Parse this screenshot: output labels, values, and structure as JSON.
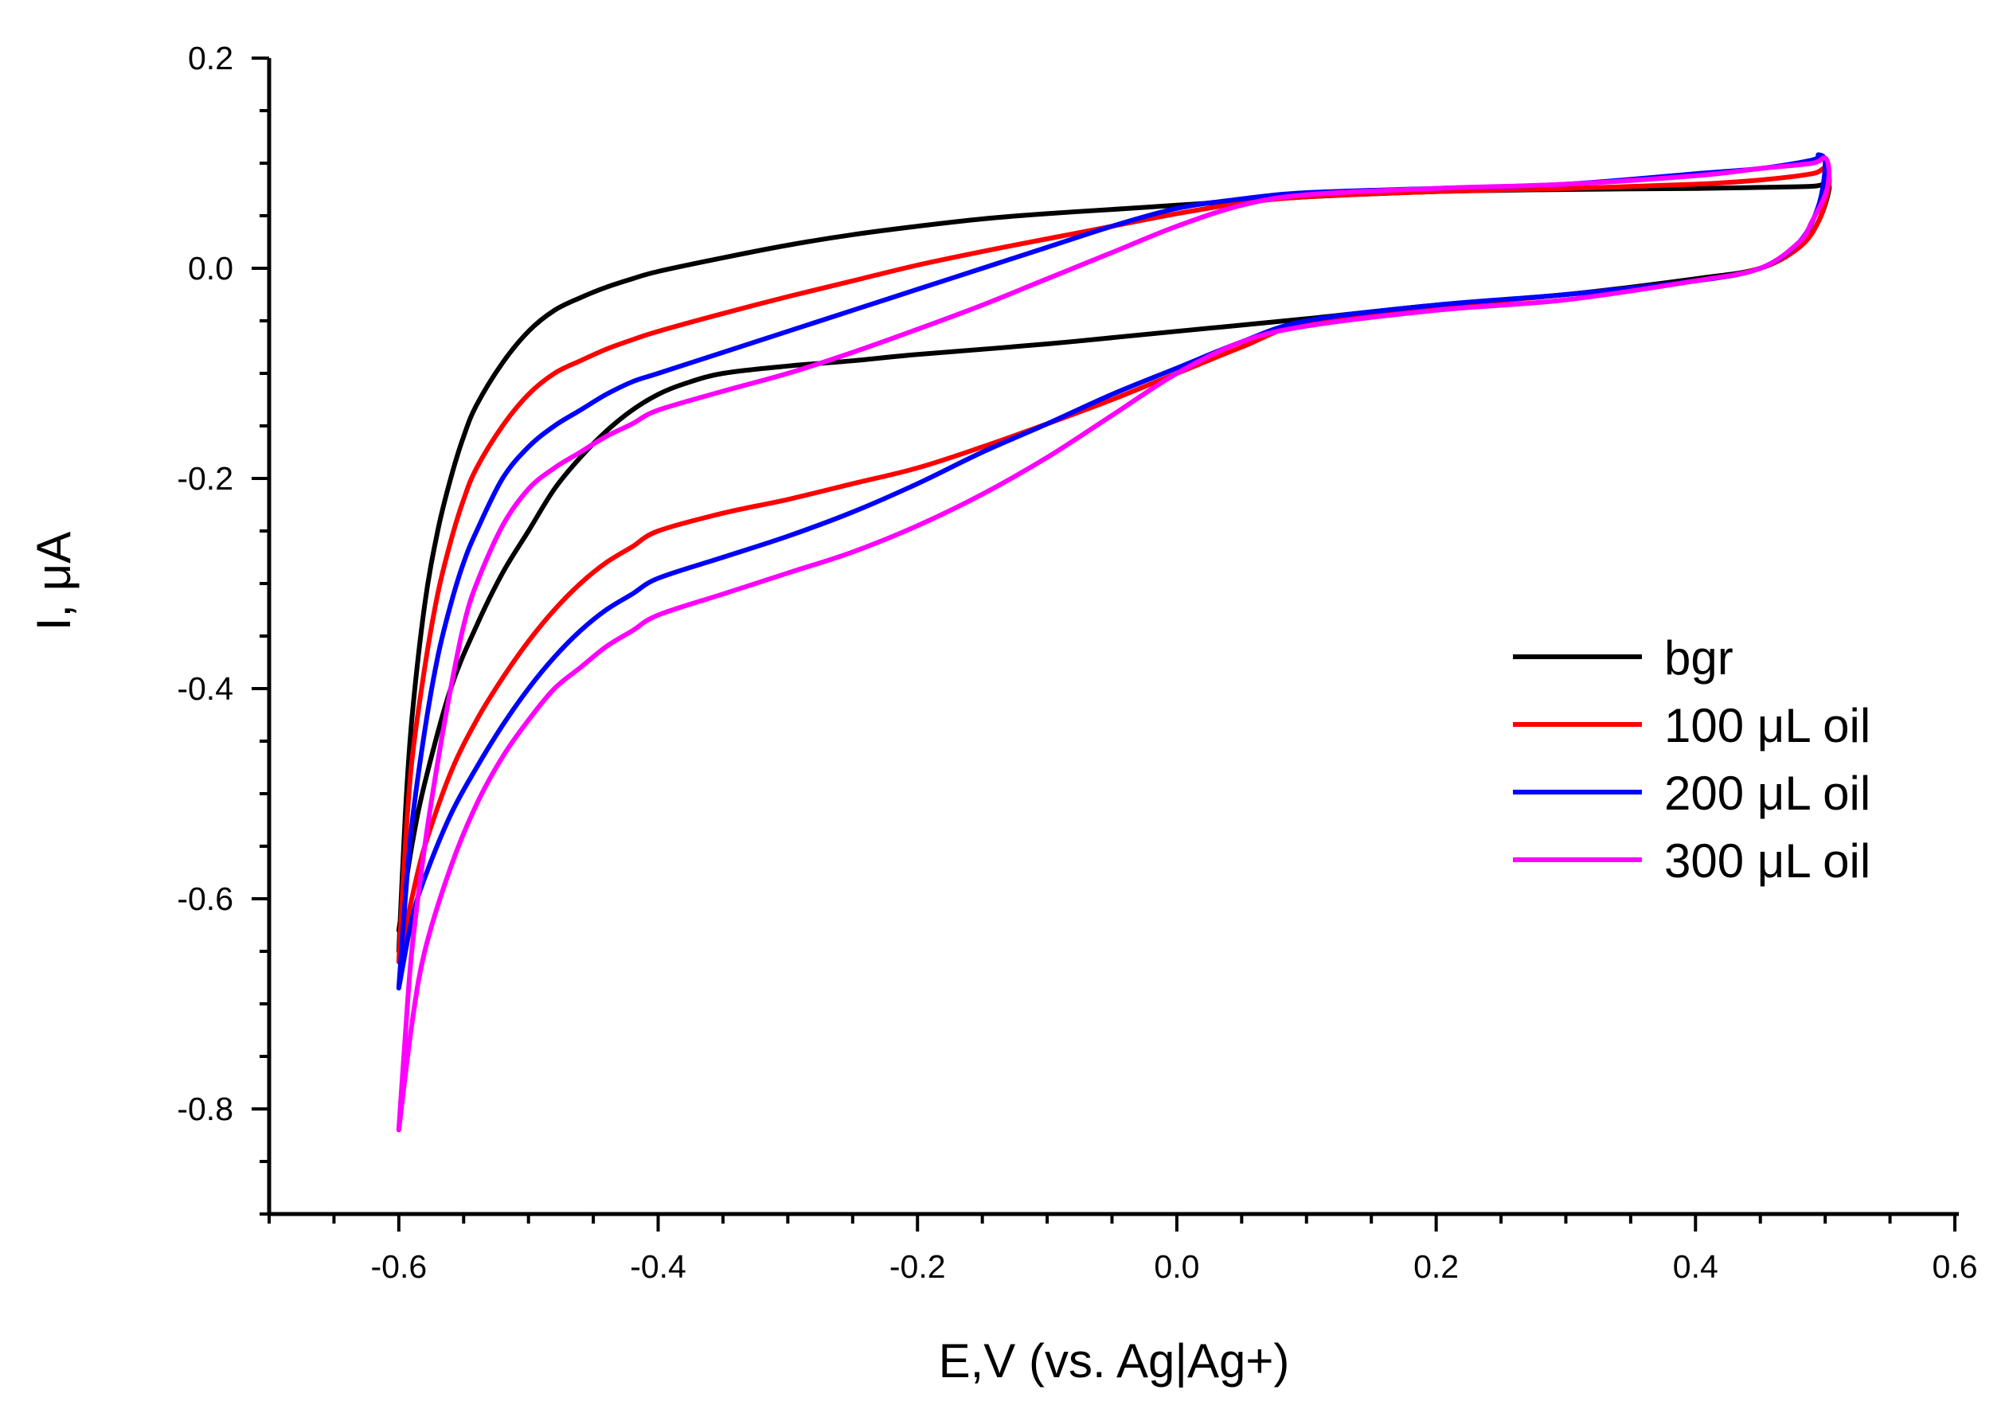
{
  "chart_data": {
    "type": "line",
    "title": "",
    "xlabel": "E,V (vs. Ag|Ag+)",
    "ylabel": "I, μA",
    "xlim": [
      -0.7,
      0.6
    ],
    "ylim": [
      -0.9,
      0.2
    ],
    "xticks": [
      -0.6,
      -0.4,
      -0.2,
      0.0,
      0.2,
      0.4,
      0.6
    ],
    "xtick_labels": [
      "-0.6",
      "-0.4",
      "-0.2",
      "0.0",
      "0.2",
      "0.4",
      "0.6"
    ],
    "yticks": [
      0.2,
      0.0,
      -0.2,
      -0.4,
      -0.6,
      -0.8
    ],
    "ytick_labels": [
      "0.2",
      "0.0",
      "-0.2",
      "-0.4",
      "-0.6",
      "-0.8"
    ],
    "legend_position": "right",
    "series": [
      {
        "name": "bgr",
        "color": "#000000",
        "x": [
          -0.6,
          -0.595,
          -0.59,
          -0.58,
          -0.57,
          -0.56,
          -0.55,
          -0.54,
          -0.52,
          -0.5,
          -0.48,
          -0.46,
          -0.44,
          -0.42,
          -0.4,
          -0.35,
          -0.3,
          -0.25,
          -0.2,
          -0.15,
          -0.1,
          -0.05,
          0.0,
          0.05,
          0.1,
          0.2,
          0.3,
          0.4,
          0.45,
          0.49,
          0.5,
          0.503,
          0.495,
          0.48,
          0.45,
          0.4,
          0.3,
          0.2,
          0.1,
          0.0,
          -0.1,
          -0.2,
          -0.25,
          -0.3,
          -0.35,
          -0.38,
          -0.4,
          -0.42,
          -0.44,
          -0.46,
          -0.48,
          -0.5,
          -0.52,
          -0.54,
          -0.56,
          -0.58,
          -0.59,
          -0.6
        ],
        "y": [
          -0.65,
          -0.52,
          -0.43,
          -0.32,
          -0.25,
          -0.2,
          -0.16,
          -0.13,
          -0.09,
          -0.06,
          -0.04,
          -0.028,
          -0.018,
          -0.01,
          -0.003,
          0.01,
          0.022,
          0.032,
          0.04,
          0.047,
          0.052,
          0.056,
          0.06,
          0.064,
          0.068,
          0.073,
          0.075,
          0.076,
          0.077,
          0.078,
          0.08,
          0.075,
          0.045,
          0.02,
          0.0,
          -0.01,
          -0.025,
          -0.035,
          -0.048,
          -0.06,
          -0.072,
          -0.082,
          -0.088,
          -0.093,
          -0.1,
          -0.11,
          -0.12,
          -0.135,
          -0.155,
          -0.18,
          -0.21,
          -0.25,
          -0.29,
          -0.34,
          -0.4,
          -0.49,
          -0.55,
          -0.63
        ]
      },
      {
        "name": "100 μL oil",
        "color": "#ff0000",
        "x": [
          -0.6,
          -0.595,
          -0.59,
          -0.58,
          -0.57,
          -0.56,
          -0.55,
          -0.54,
          -0.52,
          -0.5,
          -0.48,
          -0.46,
          -0.44,
          -0.42,
          -0.4,
          -0.35,
          -0.3,
          -0.25,
          -0.2,
          -0.15,
          -0.1,
          -0.05,
          0.0,
          0.05,
          0.1,
          0.2,
          0.3,
          0.4,
          0.45,
          0.49,
          0.5,
          0.503,
          0.495,
          0.48,
          0.45,
          0.4,
          0.3,
          0.2,
          0.1,
          0.05,
          0.0,
          -0.05,
          -0.1,
          -0.15,
          -0.2,
          -0.25,
          -0.3,
          -0.35,
          -0.4,
          -0.42,
          -0.44,
          -0.46,
          -0.48,
          -0.5,
          -0.52,
          -0.54,
          -0.56,
          -0.58,
          -0.59,
          -0.6
        ],
        "y": [
          -0.66,
          -0.55,
          -0.47,
          -0.38,
          -0.31,
          -0.26,
          -0.22,
          -0.19,
          -0.15,
          -0.12,
          -0.1,
          -0.088,
          -0.077,
          -0.068,
          -0.06,
          -0.043,
          -0.027,
          -0.012,
          0.003,
          0.016,
          0.028,
          0.04,
          0.052,
          0.062,
          0.068,
          0.073,
          0.076,
          0.08,
          0.084,
          0.09,
          0.095,
          0.08,
          0.045,
          0.02,
          0.0,
          -0.012,
          -0.025,
          -0.037,
          -0.052,
          -0.075,
          -0.1,
          -0.125,
          -0.148,
          -0.17,
          -0.19,
          -0.205,
          -0.22,
          -0.233,
          -0.25,
          -0.265,
          -0.28,
          -0.3,
          -0.325,
          -0.355,
          -0.39,
          -0.43,
          -0.48,
          -0.55,
          -0.6,
          -0.66
        ]
      },
      {
        "name": "200 μL oil",
        "color": "#0000ff",
        "x": [
          -0.6,
          -0.595,
          -0.59,
          -0.58,
          -0.57,
          -0.56,
          -0.55,
          -0.54,
          -0.52,
          -0.5,
          -0.48,
          -0.46,
          -0.44,
          -0.42,
          -0.4,
          -0.35,
          -0.3,
          -0.25,
          -0.2,
          -0.15,
          -0.1,
          -0.05,
          0.0,
          0.05,
          0.1,
          0.2,
          0.3,
          0.4,
          0.45,
          0.49,
          0.495,
          0.5,
          0.495,
          0.48,
          0.45,
          0.4,
          0.3,
          0.2,
          0.1,
          0.05,
          0.0,
          -0.05,
          -0.1,
          -0.15,
          -0.2,
          -0.25,
          -0.3,
          -0.35,
          -0.4,
          -0.42,
          -0.44,
          -0.46,
          -0.48,
          -0.5,
          -0.52,
          -0.54,
          -0.56,
          -0.58,
          -0.59,
          -0.6
        ],
        "y": [
          -0.685,
          -0.6,
          -0.53,
          -0.44,
          -0.37,
          -0.32,
          -0.28,
          -0.25,
          -0.2,
          -0.17,
          -0.15,
          -0.135,
          -0.12,
          -0.108,
          -0.1,
          -0.08,
          -0.06,
          -0.04,
          -0.02,
          0.0,
          0.02,
          0.04,
          0.057,
          0.066,
          0.072,
          0.076,
          0.08,
          0.09,
          0.095,
          0.103,
          0.108,
          0.1,
          0.06,
          0.025,
          0.0,
          -0.012,
          -0.025,
          -0.035,
          -0.05,
          -0.07,
          -0.095,
          -0.12,
          -0.148,
          -0.175,
          -0.205,
          -0.232,
          -0.255,
          -0.275,
          -0.295,
          -0.31,
          -0.325,
          -0.345,
          -0.37,
          -0.4,
          -0.435,
          -0.475,
          -0.52,
          -0.58,
          -0.62,
          -0.685
        ]
      },
      {
        "name": "300 μL oil",
        "color": "#ff00ff",
        "x": [
          -0.6,
          -0.595,
          -0.59,
          -0.58,
          -0.57,
          -0.56,
          -0.55,
          -0.54,
          -0.52,
          -0.5,
          -0.48,
          -0.46,
          -0.44,
          -0.42,
          -0.4,
          -0.35,
          -0.3,
          -0.25,
          -0.2,
          -0.15,
          -0.1,
          -0.05,
          0.0,
          0.05,
          0.1,
          0.2,
          0.3,
          0.4,
          0.45,
          0.49,
          0.5,
          0.503,
          0.5,
          0.49,
          0.48,
          0.45,
          0.4,
          0.3,
          0.2,
          0.1,
          0.05,
          0.0,
          -0.05,
          -0.1,
          -0.15,
          -0.2,
          -0.25,
          -0.3,
          -0.35,
          -0.4,
          -0.42,
          -0.44,
          -0.46,
          -0.48,
          -0.5,
          -0.52,
          -0.54,
          -0.56,
          -0.58,
          -0.59,
          -0.6
        ],
        "y": [
          -0.82,
          -0.73,
          -0.65,
          -0.55,
          -0.47,
          -0.4,
          -0.34,
          -0.3,
          -0.245,
          -0.21,
          -0.19,
          -0.175,
          -0.16,
          -0.148,
          -0.135,
          -0.117,
          -0.1,
          -0.08,
          -0.058,
          -0.035,
          -0.01,
          0.015,
          0.04,
          0.06,
          0.07,
          0.076,
          0.08,
          0.088,
          0.095,
          0.1,
          0.105,
          0.09,
          0.07,
          0.045,
          0.025,
          0.0,
          -0.012,
          -0.03,
          -0.04,
          -0.055,
          -0.07,
          -0.1,
          -0.14,
          -0.18,
          -0.215,
          -0.245,
          -0.27,
          -0.29,
          -0.31,
          -0.33,
          -0.345,
          -0.36,
          -0.38,
          -0.4,
          -0.43,
          -0.465,
          -0.51,
          -0.57,
          -0.65,
          -0.72,
          -0.82
        ]
      }
    ]
  }
}
